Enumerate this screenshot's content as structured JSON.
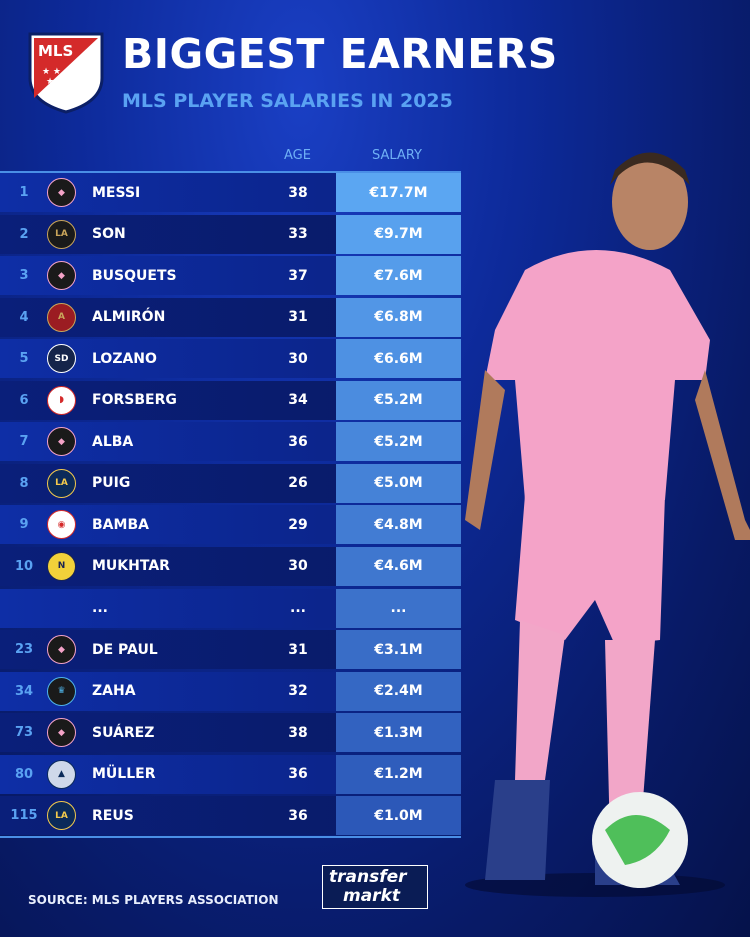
{
  "header": {
    "logo_text": "MLS",
    "title": "BIGGEST EARNERS",
    "subtitle": "MLS PLAYER SALARIES IN 2025"
  },
  "columns": {
    "age": "AGE",
    "salary": "SALARY"
  },
  "colors": {
    "accent": "#5aa2f2",
    "salary_top": "#5ba6f2",
    "salary_bottom": "#2c58b8"
  },
  "rows": [
    {
      "rank": "1",
      "club": "inter-miami",
      "name": "MESSI",
      "age": "38",
      "salary": "€17.7M"
    },
    {
      "rank": "2",
      "club": "lafc",
      "name": "SON",
      "age": "33",
      "salary": "€9.7M"
    },
    {
      "rank": "3",
      "club": "inter-miami",
      "name": "BUSQUETS",
      "age": "37",
      "salary": "€7.6M"
    },
    {
      "rank": "4",
      "club": "atlanta-united",
      "name": "ALMIRÓN",
      "age": "31",
      "salary": "€6.8M"
    },
    {
      "rank": "5",
      "club": "san-diego-fc",
      "name": "LOZANO",
      "age": "30",
      "salary": "€6.6M"
    },
    {
      "rank": "6",
      "club": "ny-red-bulls",
      "name": "FORSBERG",
      "age": "34",
      "salary": "€5.2M"
    },
    {
      "rank": "7",
      "club": "inter-miami",
      "name": "ALBA",
      "age": "36",
      "salary": "€5.2M"
    },
    {
      "rank": "8",
      "club": "la-galaxy",
      "name": "PUIG",
      "age": "26",
      "salary": "€5.0M"
    },
    {
      "rank": "9",
      "club": "chicago-fire",
      "name": "BAMBA",
      "age": "29",
      "salary": "€4.8M"
    },
    {
      "rank": "10",
      "club": "nashville-sc",
      "name": "MUKHTAR",
      "age": "30",
      "salary": "€4.6M"
    },
    {
      "rank": "",
      "club": "",
      "name": "...",
      "age": "...",
      "salary": "..."
    },
    {
      "rank": "23",
      "club": "inter-miami",
      "name": "DE PAUL",
      "age": "31",
      "salary": "€3.1M"
    },
    {
      "rank": "34",
      "club": "charlotte-fc",
      "name": "ZAHA",
      "age": "32",
      "salary": "€2.4M"
    },
    {
      "rank": "73",
      "club": "inter-miami",
      "name": "SUÁREZ",
      "age": "38",
      "salary": "€1.3M"
    },
    {
      "rank": "80",
      "club": "vancouver-whitecaps",
      "name": "MÜLLER",
      "age": "36",
      "salary": "€1.2M"
    },
    {
      "rank": "115",
      "club": "la-galaxy",
      "name": "REUS",
      "age": "36",
      "salary": "€1.0M"
    }
  ],
  "footer": {
    "source": "SOURCE: MLS PLAYERS ASSOCIATION",
    "brand_line1": "transfer",
    "brand_line2": "markt"
  }
}
